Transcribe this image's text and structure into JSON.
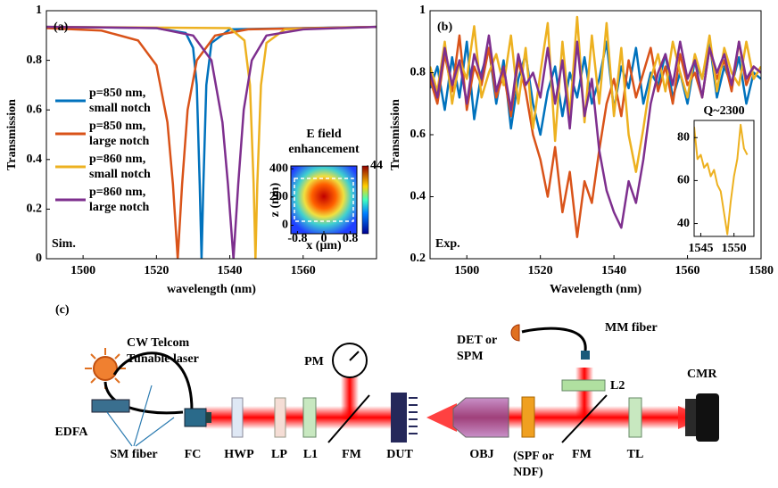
{
  "chart_data": [
    {
      "type": "line",
      "panel_label": "(a)",
      "annotation": "Sim.",
      "xlabel": "wavelength (nm)",
      "ylabel": "Transmission",
      "xlim": [
        1490,
        1580
      ],
      "ylim": [
        0,
        1
      ],
      "xticks": [
        1500,
        1520,
        1540,
        1560
      ],
      "yticks": [
        0,
        0.2,
        0.4,
        0.6,
        0.8,
        1
      ],
      "series": [
        {
          "name": "p=850 nm, small notch",
          "color": "#0072bd",
          "x": [
            1490,
            1520,
            1528,
            1530,
            1531,
            1531.8,
            1532.3,
            1532.8,
            1533.6,
            1535,
            1540,
            1580
          ],
          "values": [
            0.935,
            0.93,
            0.91,
            0.85,
            0.7,
            0.3,
            0,
            0.3,
            0.7,
            0.87,
            0.925,
            0.935
          ]
        },
        {
          "name": "p=850 nm, large notch",
          "color": "#d95319",
          "x": [
            1490,
            1505,
            1515,
            1520,
            1523,
            1524.5,
            1525.8,
            1527,
            1528.5,
            1531,
            1536,
            1545,
            1580
          ],
          "values": [
            0.93,
            0.92,
            0.88,
            0.78,
            0.55,
            0.3,
            0,
            0.3,
            0.6,
            0.8,
            0.9,
            0.925,
            0.935
          ]
        },
        {
          "name": "p=860 nm, small notch",
          "color": "#edb120",
          "x": [
            1490,
            1540,
            1544,
            1545.5,
            1546.5,
            1547,
            1547.5,
            1548.5,
            1550,
            1555,
            1580
          ],
          "values": [
            0.935,
            0.93,
            0.88,
            0.7,
            0.3,
            0,
            0.3,
            0.7,
            0.87,
            0.925,
            0.935
          ]
        },
        {
          "name": "p=860 nm, large notch",
          "color": "#7e2f8e",
          "x": [
            1490,
            1520,
            1530,
            1535,
            1538,
            1539.5,
            1541,
            1542.3,
            1543.8,
            1546,
            1550,
            1560,
            1580
          ],
          "values": [
            0.935,
            0.93,
            0.9,
            0.8,
            0.55,
            0.3,
            0,
            0.3,
            0.6,
            0.8,
            0.9,
            0.925,
            0.935
          ]
        }
      ]
    },
    {
      "type": "line",
      "panel_label": "(b)",
      "annotation": "Exp.",
      "xlabel": "Wavelength (nm)",
      "ylabel": "Transmission",
      "xlim": [
        1490,
        1580
      ],
      "ylim": [
        0.2,
        1
      ],
      "xticks": [
        1500,
        1520,
        1540,
        1560,
        1580
      ],
      "yticks": [
        0.2,
        0.4,
        0.6,
        0.8,
        1
      ],
      "x": [
        1490,
        1492,
        1494,
        1496,
        1498,
        1500,
        1502,
        1504,
        1506,
        1508,
        1510,
        1512,
        1514,
        1516,
        1518,
        1520,
        1522,
        1524,
        1526,
        1528,
        1530,
        1532,
        1534,
        1536,
        1538,
        1540,
        1542,
        1544,
        1546,
        1548,
        1550,
        1552,
        1554,
        1556,
        1558,
        1560,
        1562,
        1564,
        1566,
        1568,
        1570,
        1572,
        1574,
        1576,
        1578,
        1580
      ],
      "series": [
        {
          "color": "#0072bd",
          "values": [
            0.75,
            0.82,
            0.68,
            0.85,
            0.72,
            0.9,
            0.65,
            0.8,
            0.88,
            0.7,
            0.84,
            0.62,
            0.78,
            0.86,
            0.7,
            0.6,
            0.74,
            0.82,
            0.66,
            0.8,
            0.72,
            0.85,
            0.7,
            0.78,
            0.9,
            0.68,
            0.82,
            0.75,
            0.88,
            0.7,
            0.8,
            0.76,
            0.86,
            0.72,
            0.8,
            0.7,
            0.84,
            0.78,
            0.9,
            0.72,
            0.82,
            0.76,
            0.85,
            0.7,
            0.8,
            0.78
          ]
        },
        {
          "color": "#d95319",
          "values": [
            0.78,
            0.7,
            0.86,
            0.74,
            0.92,
            0.68,
            0.82,
            0.76,
            0.88,
            0.72,
            0.8,
            0.66,
            0.84,
            0.74,
            0.6,
            0.52,
            0.4,
            0.56,
            0.35,
            0.48,
            0.27,
            0.45,
            0.38,
            0.55,
            0.7,
            0.78,
            0.66,
            0.84,
            0.72,
            0.8,
            0.88,
            0.74,
            0.82,
            0.7,
            0.86,
            0.76,
            0.8,
            0.72,
            0.88,
            0.78,
            0.84,
            0.74,
            0.9,
            0.76,
            0.82,
            0.8
          ]
        },
        {
          "color": "#edb120",
          "values": [
            0.82,
            0.74,
            0.9,
            0.7,
            0.84,
            0.78,
            0.95,
            0.72,
            0.8,
            0.86,
            0.76,
            0.92,
            0.7,
            0.88,
            0.62,
            0.8,
            0.96,
            0.58,
            0.9,
            0.66,
            0.98,
            0.64,
            0.92,
            0.7,
            0.96,
            0.66,
            0.88,
            0.6,
            0.48,
            0.62,
            0.78,
            0.86,
            0.74,
            0.9,
            0.8,
            0.72,
            0.86,
            0.78,
            0.92,
            0.74,
            0.88,
            0.8,
            0.76,
            0.9,
            0.78,
            0.82
          ]
        },
        {
          "color": "#7e2f8e",
          "values": [
            0.8,
            0.72,
            0.88,
            0.76,
            0.84,
            0.7,
            0.86,
            0.78,
            0.92,
            0.74,
            0.82,
            0.68,
            0.86,
            0.76,
            0.8,
            0.72,
            0.88,
            0.7,
            0.84,
            0.62,
            0.9,
            0.66,
            0.78,
            0.55,
            0.42,
            0.35,
            0.3,
            0.45,
            0.38,
            0.52,
            0.7,
            0.8,
            0.86,
            0.76,
            0.9,
            0.78,
            0.84,
            0.72,
            0.88,
            0.8,
            0.86,
            0.76,
            0.9,
            0.78,
            0.82,
            0.8
          ]
        }
      ]
    },
    {
      "type": "heatmap",
      "title": "E field enhancement",
      "xlabel": "x (μm)",
      "ylabel": "z (nm)",
      "xlim": [
        -1,
        1
      ],
      "ylim": [
        -60,
        420
      ],
      "xticks": [
        -0.8,
        0,
        0.8
      ],
      "yticks": [
        0,
        200,
        400
      ],
      "clim": [
        0,
        44
      ],
      "colorbar_ticks": [
        44
      ]
    },
    {
      "type": "line",
      "title": "Q~2300",
      "xlim": [
        1544,
        1553
      ],
      "ylim": [
        34,
        88
      ],
      "xticks": [
        1545,
        1550
      ],
      "yticks": [
        40,
        60,
        80
      ],
      "x": [
        1544,
        1544.5,
        1545,
        1545.5,
        1546,
        1546.5,
        1547,
        1547.5,
        1548,
        1548.5,
        1549,
        1549.5,
        1550,
        1550.5,
        1551,
        1551.5,
        1552
      ],
      "series": [
        {
          "color": "#edb120",
          "values": [
            85,
            70,
            72,
            66,
            68,
            62,
            65,
            58,
            55,
            45,
            35,
            50,
            62,
            70,
            86,
            75,
            72
          ]
        }
      ]
    }
  ],
  "diagram": {
    "label": "(c)",
    "labels": [
      "CW Telcom",
      "Tunable laser",
      "EDFA",
      "SM fiber",
      "FC",
      "HWP",
      "LP",
      "L1",
      "FM",
      "PM",
      "DUT",
      "OBJ",
      "(SPF or",
      "NDF)",
      "FM",
      "L2",
      "DET or",
      "SPM",
      "MM fiber",
      "TL",
      "CMR"
    ]
  }
}
